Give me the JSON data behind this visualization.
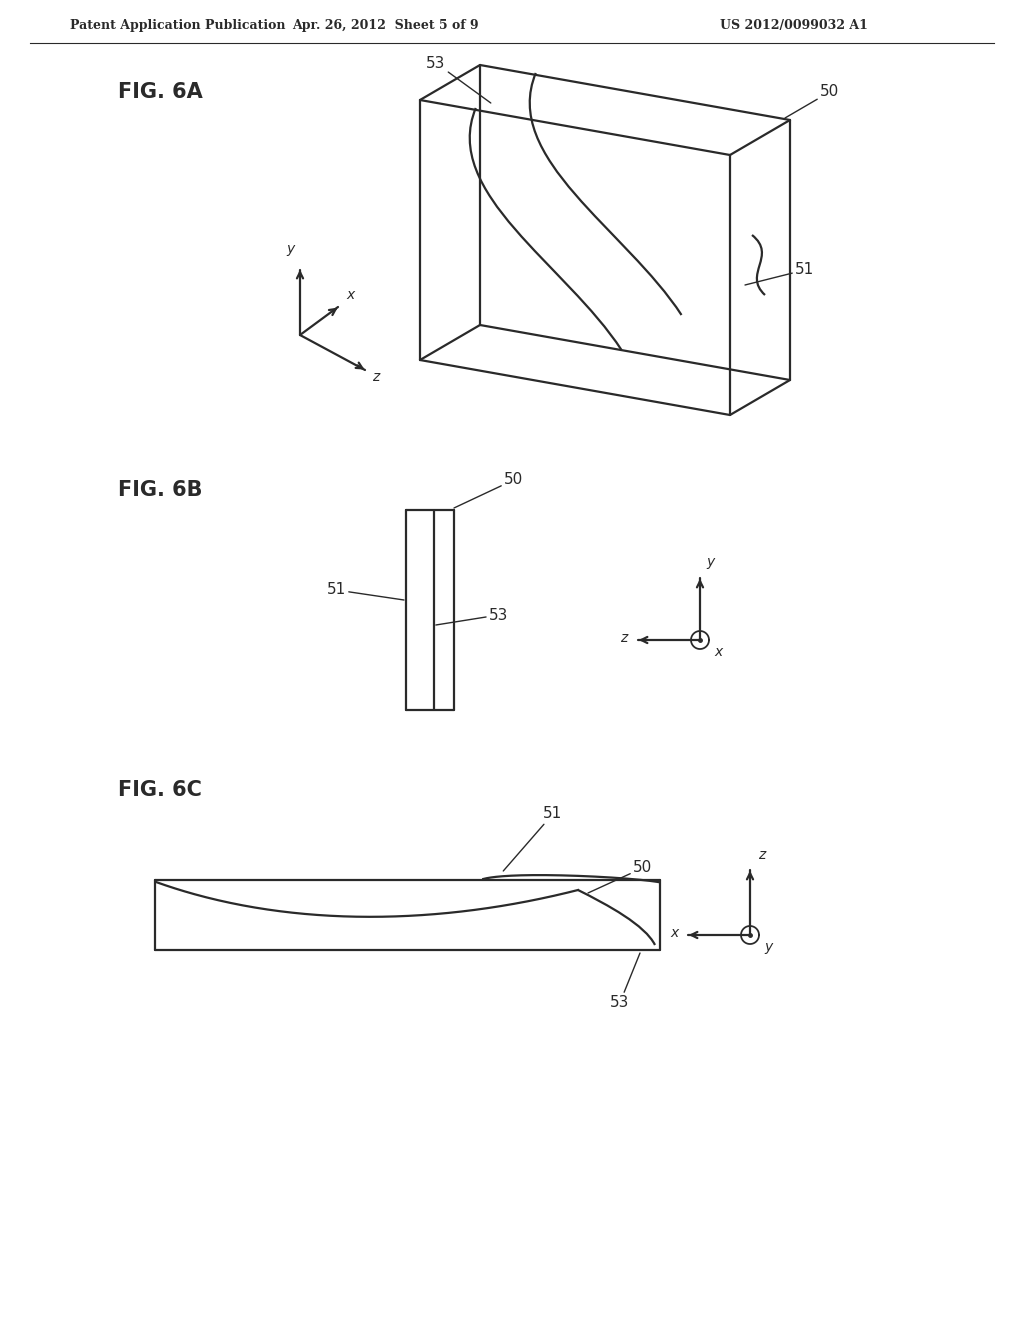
{
  "title_left": "Patent Application Publication",
  "title_mid": "Apr. 26, 2012  Sheet 5 of 9",
  "title_right": "US 2012/0099032 A1",
  "fig6a_label": "FIG. 6A",
  "fig6b_label": "FIG. 6B",
  "fig6c_label": "FIG. 6C",
  "bg_color": "#ffffff",
  "line_color": "#2a2a2a",
  "line_width": 1.6,
  "annotation_fontsize": 11,
  "label_fontsize": 15
}
